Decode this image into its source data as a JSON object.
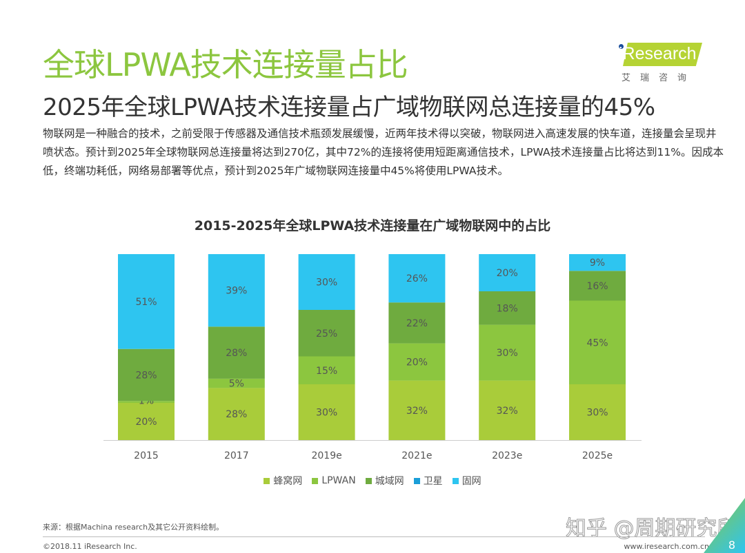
{
  "header": {
    "title": "全球LPWA技术连接量占比",
    "subtitle": "2025年全球LPWA技术连接量占广域物联网总连接量的45%"
  },
  "body": "物联网是一种融合的技术，之前受限于传感器及通信技术瓶颈发展缓慢，近两年技术得以突破，物联网进入高速发展的快车道，连接量会呈现井喷状态。预计到2025年全球物联网总连接量将达到270亿，其中72%的连接将使用短距离通信技术，LPWA技术连接量占比将达到11%。因成本低，终端功耗低，网络易部署等优点，预计到2025年广域物联网连接量中45%将使用LPWA技术。",
  "logo": {
    "text": "iResearch",
    "cn": "艾瑞咨询"
  },
  "chart_data": {
    "type": "bar",
    "stacked": true,
    "title": "2015-2025年全球LPWA技术连接量在广域物联网中的占比",
    "categories": [
      "2015",
      "2017",
      "2019e",
      "2021e",
      "2023e",
      "2025e"
    ],
    "ylim": [
      0,
      100
    ],
    "unit": "%",
    "grid": false,
    "legend": "bottom",
    "series": [
      {
        "name": "蜂窝网",
        "color": "#a9cc3a",
        "values": [
          20,
          28,
          30,
          32,
          32,
          30
        ]
      },
      {
        "name": "LPWAN",
        "color": "#8cc63f",
        "values": [
          1,
          5,
          15,
          20,
          30,
          45
        ]
      },
      {
        "name": "城域网",
        "color": "#6fab3f",
        "values": [
          28,
          28,
          25,
          22,
          18,
          16
        ]
      },
      {
        "name": "卫星",
        "color": "#1a9ed8",
        "values": [
          0,
          0,
          0,
          0,
          0,
          0
        ]
      },
      {
        "name": "固网",
        "color": "#2ec5f0",
        "values": [
          51,
          39,
          30,
          26,
          20,
          9
        ]
      }
    ]
  },
  "footer": {
    "source": "来源：根据Machina  research及其它公开资料绘制。",
    "copyright": "©2018.11 iResearch Inc.",
    "url": "www.iresearch.com.cn",
    "page": "8",
    "watermark": "知乎 @周期研究所"
  }
}
